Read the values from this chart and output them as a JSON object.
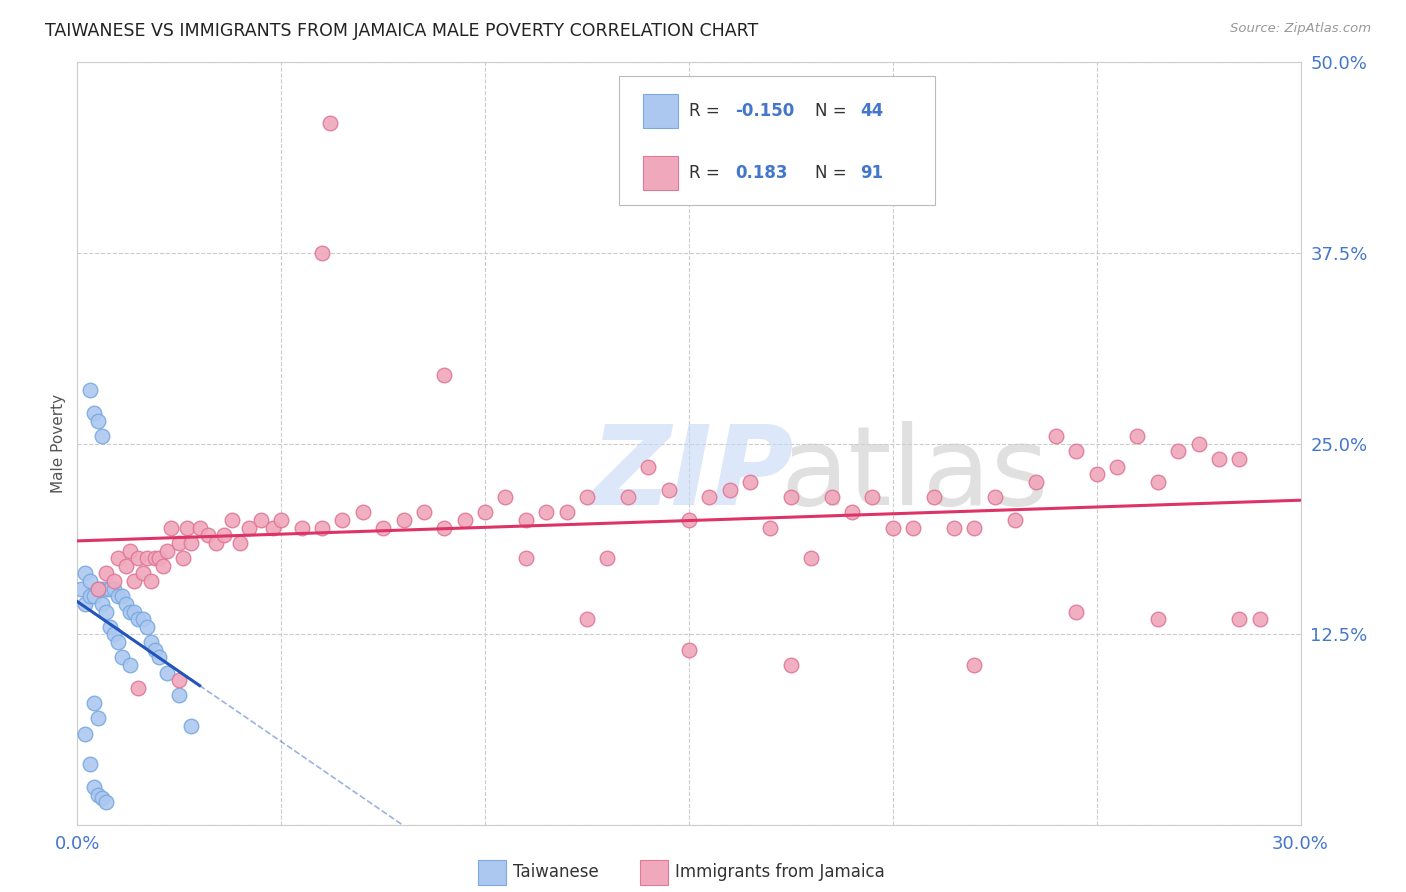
{
  "title": "TAIWANESE VS IMMIGRANTS FROM JAMAICA MALE POVERTY CORRELATION CHART",
  "source": "Source: ZipAtlas.com",
  "ylabel": "Male Poverty",
  "xlim": [
    0.0,
    0.3
  ],
  "ylim": [
    0.0,
    0.5
  ],
  "xticks": [
    0.0,
    0.05,
    0.1,
    0.15,
    0.2,
    0.25,
    0.3
  ],
  "xticklabels": [
    "0.0%",
    "",
    "",
    "",
    "",
    "",
    "30.0%"
  ],
  "yticks": [
    0.0,
    0.125,
    0.25,
    0.375,
    0.5
  ],
  "yticklabels": [
    "",
    "12.5%",
    "25.0%",
    "37.5%",
    "50.0%"
  ],
  "blue_color": "#adc8f0",
  "blue_edge": "#7aaae0",
  "pink_color": "#f0a8bc",
  "pink_edge": "#e07898",
  "blue_line_color": "#2255bb",
  "pink_line_color": "#dd3366",
  "axis_label_color": "#4477cc",
  "grid_color": "#cccccc",
  "tw_x": [
    0.001,
    0.002,
    0.002,
    0.002,
    0.003,
    0.003,
    0.003,
    0.004,
    0.004,
    0.004,
    0.005,
    0.005,
    0.005,
    0.006,
    0.006,
    0.006,
    0.007,
    0.007,
    0.007,
    0.008,
    0.008,
    0.009,
    0.009,
    0.01,
    0.01,
    0.011,
    0.011,
    0.012,
    0.013,
    0.013,
    0.014,
    0.015,
    0.016,
    0.017,
    0.018,
    0.019,
    0.02,
    0.022,
    0.025,
    0.028,
    0.003,
    0.004,
    0.005,
    0.006
  ],
  "tw_y": [
    0.155,
    0.145,
    0.165,
    0.06,
    0.15,
    0.16,
    0.04,
    0.15,
    0.08,
    0.025,
    0.155,
    0.07,
    0.02,
    0.155,
    0.145,
    0.018,
    0.155,
    0.14,
    0.015,
    0.155,
    0.13,
    0.155,
    0.125,
    0.15,
    0.12,
    0.15,
    0.11,
    0.145,
    0.14,
    0.105,
    0.14,
    0.135,
    0.135,
    0.13,
    0.12,
    0.115,
    0.11,
    0.1,
    0.085,
    0.065,
    0.285,
    0.27,
    0.265,
    0.255
  ],
  "jm_x": [
    0.005,
    0.007,
    0.009,
    0.01,
    0.012,
    0.013,
    0.014,
    0.015,
    0.016,
    0.017,
    0.018,
    0.019,
    0.02,
    0.021,
    0.022,
    0.023,
    0.025,
    0.026,
    0.027,
    0.028,
    0.03,
    0.032,
    0.034,
    0.036,
    0.038,
    0.04,
    0.042,
    0.045,
    0.048,
    0.05,
    0.055,
    0.06,
    0.062,
    0.065,
    0.07,
    0.075,
    0.08,
    0.085,
    0.09,
    0.095,
    0.1,
    0.105,
    0.11,
    0.115,
    0.12,
    0.125,
    0.13,
    0.135,
    0.14,
    0.145,
    0.15,
    0.155,
    0.16,
    0.165,
    0.17,
    0.175,
    0.18,
    0.185,
    0.19,
    0.195,
    0.2,
    0.205,
    0.21,
    0.215,
    0.22,
    0.225,
    0.23,
    0.235,
    0.24,
    0.245,
    0.25,
    0.255,
    0.26,
    0.265,
    0.27,
    0.275,
    0.28,
    0.285,
    0.29,
    0.06,
    0.09,
    0.11,
    0.125,
    0.15,
    0.175,
    0.22,
    0.245,
    0.265,
    0.285,
    0.015,
    0.025
  ],
  "jm_y": [
    0.155,
    0.165,
    0.16,
    0.175,
    0.17,
    0.18,
    0.16,
    0.175,
    0.165,
    0.175,
    0.16,
    0.175,
    0.175,
    0.17,
    0.18,
    0.195,
    0.185,
    0.175,
    0.195,
    0.185,
    0.195,
    0.19,
    0.185,
    0.19,
    0.2,
    0.185,
    0.195,
    0.2,
    0.195,
    0.2,
    0.195,
    0.195,
    0.46,
    0.2,
    0.205,
    0.195,
    0.2,
    0.205,
    0.195,
    0.2,
    0.205,
    0.215,
    0.2,
    0.205,
    0.205,
    0.215,
    0.175,
    0.215,
    0.235,
    0.22,
    0.2,
    0.215,
    0.22,
    0.225,
    0.195,
    0.215,
    0.175,
    0.215,
    0.205,
    0.215,
    0.195,
    0.195,
    0.215,
    0.195,
    0.195,
    0.215,
    0.2,
    0.225,
    0.255,
    0.245,
    0.23,
    0.235,
    0.255,
    0.225,
    0.245,
    0.25,
    0.24,
    0.24,
    0.135,
    0.375,
    0.295,
    0.175,
    0.135,
    0.115,
    0.105,
    0.105,
    0.14,
    0.135,
    0.135,
    0.09,
    0.095
  ]
}
